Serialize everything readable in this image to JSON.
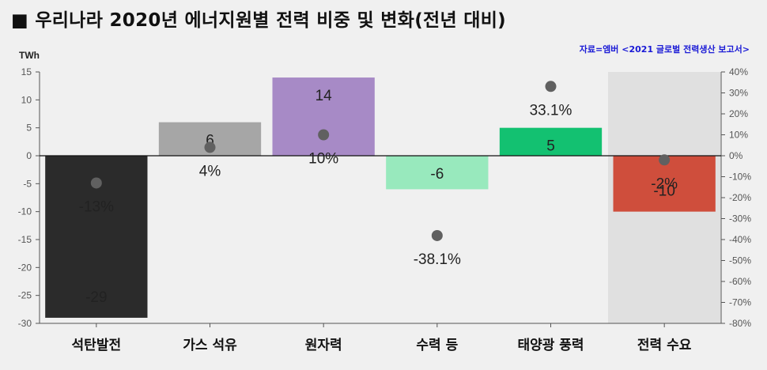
{
  "header": {
    "title": "■ 우리나라 2020년 에너지원별 전력 비중 및 변화(전년 대비)",
    "source": "자료=엠버 <2021 글로벌 전력생산 보고서>"
  },
  "chart_data": {
    "type": "bar",
    "categories": [
      "석탄발전",
      "가스 석유",
      "원자력",
      "수력 등",
      "태양광 풍력",
      "전력 수요"
    ],
    "values": [
      -29,
      6,
      14,
      -6,
      5,
      -10
    ],
    "value_labels": [
      "-29",
      "6",
      "14",
      "-6",
      "5",
      "-10"
    ],
    "bar_colors": [
      "#2b2b2b",
      "#a6a6a6",
      "#a78ac6",
      "#98e9bd",
      "#13c171",
      "#cf4e3c"
    ],
    "percent_change": [
      -13,
      4,
      10,
      -38.1,
      33.1,
      -2
    ],
    "percent_labels": [
      "-13%",
      "4%",
      "10%",
      "-38.1%",
      "33.1%",
      "-2%"
    ],
    "ylabel": "TWh",
    "ylim": [
      -30,
      15
    ],
    "yticks": [
      15,
      10,
      5,
      0,
      -5,
      -10,
      -15,
      -20,
      -25,
      -30
    ],
    "y2lim": [
      -80,
      40
    ],
    "y2ticks": [
      "40%",
      "30%",
      "20%",
      "10%",
      "0%",
      "-10%",
      "-20%",
      "-30%",
      "-40%",
      "-50%",
      "-60%",
      "-70%",
      "-80%"
    ],
    "highlight_category": "전력 수요",
    "grid": false
  }
}
